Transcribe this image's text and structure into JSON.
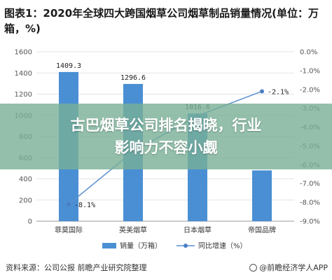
{
  "title": "图表1：2020年全球四大跨国烟草公司烟草制品销量情况(单位：万箱，%)",
  "banner": {
    "line1": "古巴烟草公司排名揭晓，行业",
    "line2": "影响力不容小觑"
  },
  "footer": {
    "source": "资料来源：公司公报 前瞻产业研究院整理",
    "brand": "@前瞻经济学人APP"
  },
  "colors": {
    "bar": "#4a8fd4",
    "line": "#5b8fcf",
    "marker": "#4a7ec4"
  },
  "chart_data": {
    "type": "bar",
    "categories": [
      "菲莫国际",
      "英美烟草",
      "日本烟草",
      "帝国品牌"
    ],
    "series": [
      {
        "name": "销量（万箱）",
        "type": "bar",
        "axis": "left",
        "values": [
          1409.3,
          1296.6,
          1016.6,
          480
        ]
      },
      {
        "name": "同比增速（%）",
        "type": "line",
        "axis": "right",
        "values": [
          -8.1,
          -5.3,
          -3.4,
          -2.1
        ]
      }
    ],
    "data_labels": {
      "bars": [
        "1409.3",
        "1296.6",
        "1016.6",
        ""
      ],
      "line": [
        "-8.1%",
        "",
        "",
        "-2.1%"
      ]
    },
    "y_left": {
      "min": 0,
      "max": 1600,
      "step": 200
    },
    "y_right": {
      "min": -9.0,
      "max": 0.0,
      "step": 1.0
    },
    "left_ticks": [
      "0",
      "200",
      "400",
      "600",
      "800",
      "1000",
      "1200",
      "1400",
      "1600"
    ],
    "right_ticks": [
      "0.0%",
      "-1.0%",
      "-2.0%",
      "-3.0%",
      "-4.0%",
      "-5.0%",
      "-6.0%",
      "-7.0%",
      "-8.0%",
      "-9.0%"
    ],
    "legend": [
      "销量（万箱）",
      "同比增速（%）"
    ],
    "legend_position": "bottom",
    "grid": true
  }
}
